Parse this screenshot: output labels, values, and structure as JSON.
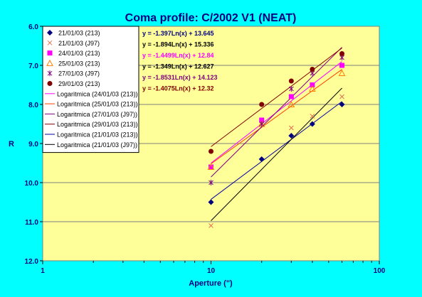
{
  "chart_data": {
    "type": "scatter",
    "title": "Coma profile: C/2002 V1 (NEAT)",
    "xlabel": "Aperture (\")",
    "ylabel": "R",
    "x_scale": "log",
    "xlim": [
      1,
      100
    ],
    "ylim": [
      12.0,
      6.0
    ],
    "y_reversed": true,
    "x_ticks": [
      "1",
      "10",
      "100"
    ],
    "y_ticks": [
      "6.0",
      "7.0",
      "8.0",
      "9.0",
      "10.0",
      "11.0",
      "12.0"
    ],
    "grid": "horizontal-major",
    "legend_position": "top-left",
    "colors": {
      "background": "#00FFFF",
      "plot_area": "#FFFF99",
      "title": "#000080",
      "grid": "#7f7f7f"
    },
    "series": [
      {
        "name": "21/01/03 (213)",
        "marker": "diamond",
        "color": "#000080",
        "x": [
          10,
          20,
          30,
          40,
          60
        ],
        "y": [
          10.5,
          9.4,
          8.8,
          8.5,
          8.0
        ]
      },
      {
        "name": "21/01/03 (J97)",
        "marker": "x",
        "color": "#E07050",
        "x": [
          10,
          20,
          30,
          40,
          60
        ],
        "y": [
          11.1,
          8.5,
          8.6,
          8.3,
          7.8
        ]
      },
      {
        "name": "24/01/03 (213)",
        "marker": "square",
        "color": "#FF00FF",
        "x": [
          10,
          20,
          30,
          40,
          60
        ],
        "y": [
          9.6,
          8.4,
          7.8,
          7.5,
          7.0
        ]
      },
      {
        "name": "25/01/03 (213)",
        "marker": "triangle",
        "color": "#FF8000",
        "x": [
          10,
          20,
          30,
          40,
          60
        ],
        "y": [
          9.6,
          8.5,
          8.0,
          7.6,
          7.2
        ]
      },
      {
        "name": "27/01/03 (J97)",
        "marker": "asterisk",
        "color": "#800080",
        "x": [
          10,
          20,
          30,
          40,
          60
        ],
        "y": [
          10.0,
          8.5,
          7.6,
          7.2,
          6.8
        ]
      },
      {
        "name": "29/01/03 (213)",
        "marker": "circle",
        "color": "#800000",
        "x": [
          10,
          20,
          30,
          40,
          60
        ],
        "y": [
          9.2,
          8.0,
          7.4,
          7.1,
          6.7
        ]
      }
    ],
    "trendlines": [
      {
        "name": "Logaritmica (24/01/03 (213))",
        "color": "#FF00FF",
        "a": -1.4499,
        "b": 12.84,
        "xrange": [
          10,
          60
        ]
      },
      {
        "name": "Logaritmica (25/01/03 (213))",
        "color": "#FF4000",
        "a": -1.349,
        "b": 12.627,
        "xrange": [
          10,
          60
        ]
      },
      {
        "name": "Logaritmica (27/01/03 (J97))",
        "color": "#800080",
        "a": -1.8531,
        "b": 14.123,
        "xrange": [
          10,
          60
        ]
      },
      {
        "name": "Logaritmica (29/01/03 (213))",
        "color": "#800000",
        "a": -1.4075,
        "b": 12.32,
        "xrange": [
          10,
          60
        ]
      },
      {
        "name": "Logaritmica (21/01/03 (213))",
        "color": "#0000A0",
        "a": -1.397,
        "b": 13.645,
        "xrange": [
          10,
          60
        ]
      },
      {
        "name": "Logaritmica (21/01/03 (J97))",
        "color": "#000000",
        "a": -1.894,
        "b": 15.336,
        "xrange": [
          10,
          60
        ]
      }
    ],
    "annotations": [
      {
        "text": "y = -1.397Ln(x) + 13.645",
        "color": "#000080"
      },
      {
        "text": "y = -1.894Ln(x) + 15.336",
        "color": "#000000"
      },
      {
        "text": "y = -1.4499Ln(x) + 12.84",
        "color": "#FF00FF"
      },
      {
        "text": "y = -1.349Ln(x) + 12.627",
        "color": "#000000"
      },
      {
        "text": "y = -1.8531Ln(x) + 14.123",
        "color": "#800080"
      },
      {
        "text": "y = -1.4075Ln(x) + 12.32",
        "color": "#800000"
      }
    ]
  }
}
